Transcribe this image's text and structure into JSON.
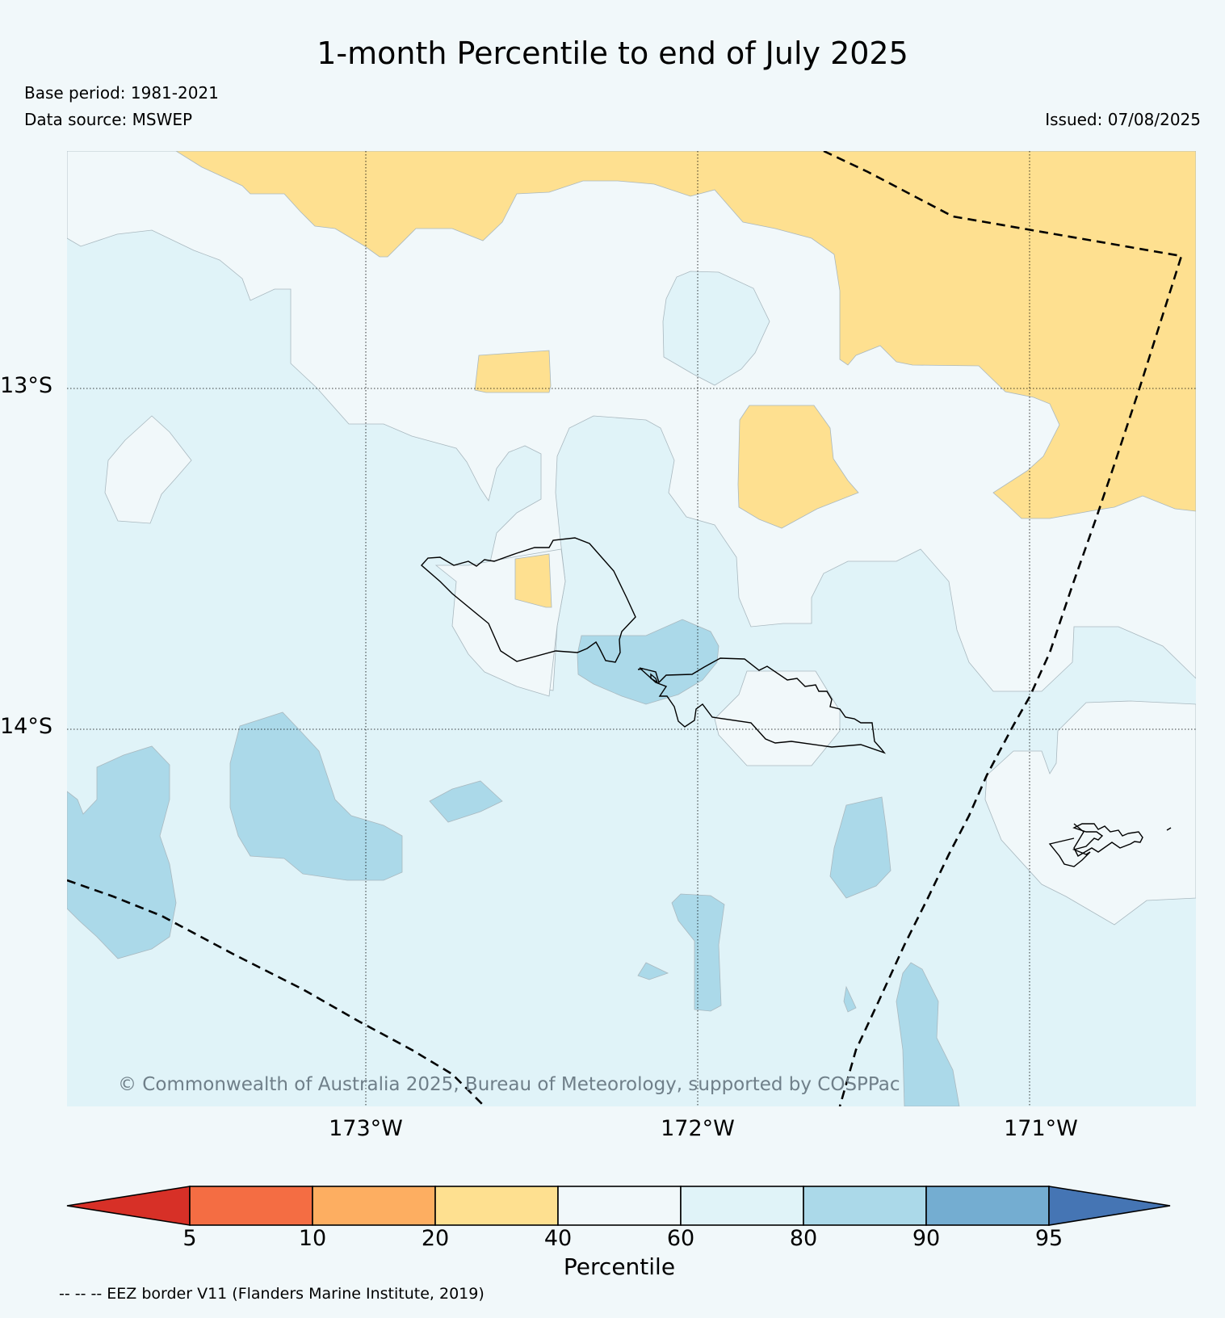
{
  "title": "1-month Percentile to end of July 2025",
  "base_period": "Base period: 1981-2021",
  "data_source": "Data source: MSWEP",
  "issued": "Issued: 07/08/2025",
  "credit": "© Commonwealth of Australia 2025, Bureau of Meteorology, supported by COSPPac",
  "longitude_labels": [
    "173°W",
    "172°W",
    "171°W"
  ],
  "latitude_labels": [
    "13°S",
    "14°S"
  ],
  "colorbar": {
    "title": "Percentile",
    "ticks": [
      "5",
      "10",
      "20",
      "40",
      "60",
      "80",
      "90",
      "95"
    ],
    "colors": {
      "below_5": "#d73027",
      "5_10": "#f46d43",
      "10_20": "#fdae61",
      "20_40": "#fee090",
      "40_60": "#f1f8fa",
      "60_80": "#e0f3f8",
      "80_90": "#abd9e9",
      "90_95": "#74add1",
      "above_95": "#4575b4"
    }
  },
  "eez_note": "-- -- -- EEZ border V11 (Flanders Marine Institute, 2019)"
}
